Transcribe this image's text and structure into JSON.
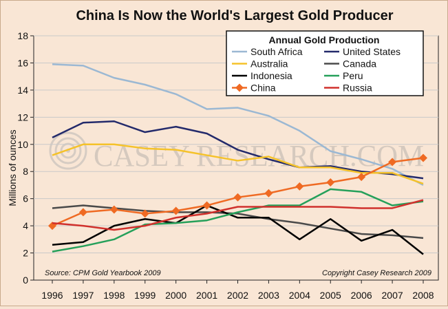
{
  "chart_data": {
    "type": "line",
    "title": "China Is Now the World's Largest Gold Producer",
    "ylabel": "Millions of ounces",
    "xlabel": "",
    "ylim": [
      0,
      18
    ],
    "yticks": [
      0,
      2,
      4,
      6,
      8,
      10,
      12,
      14,
      16,
      18
    ],
    "categories": [
      "1996",
      "1997",
      "1998",
      "1999",
      "2000",
      "2001",
      "2002",
      "2003",
      "2004",
      "2005",
      "2006",
      "2007",
      "2008"
    ],
    "legend_title": "Annual Gold Production",
    "legend_position": "top-right",
    "grid": true,
    "source": "Source: CPM Gold Yearbook 2009",
    "copyright": "Copyright Casey Research 2009",
    "watermark": "CASEY RESEARCH.COM",
    "series": [
      {
        "name": "South Africa",
        "color": "#9bb8d3",
        "marker": "none",
        "values": [
          15.9,
          15.8,
          14.9,
          14.4,
          13.7,
          12.6,
          12.7,
          12.1,
          11.0,
          9.5,
          8.9,
          8.2,
          7.0
        ]
      },
      {
        "name": "United States",
        "color": "#232a6b",
        "marker": "none",
        "values": [
          10.5,
          11.6,
          11.7,
          10.9,
          11.3,
          10.8,
          9.6,
          8.9,
          8.3,
          8.4,
          8.0,
          7.8,
          7.5
        ]
      },
      {
        "name": "Australia",
        "color": "#f5c22a",
        "marker": "none",
        "values": [
          9.2,
          10.0,
          10.0,
          9.7,
          9.6,
          9.2,
          8.8,
          9.1,
          8.3,
          8.3,
          7.9,
          7.9,
          7.1
        ]
      },
      {
        "name": "Canada",
        "color": "#4a4a4a",
        "marker": "none",
        "values": [
          5.3,
          5.5,
          5.3,
          5.1,
          5.0,
          5.0,
          4.9,
          4.5,
          4.2,
          3.8,
          3.4,
          3.3,
          3.1
        ]
      },
      {
        "name": "Indonesia",
        "color": "#000000",
        "marker": "none",
        "values": [
          2.6,
          2.8,
          4.0,
          4.5,
          4.2,
          5.5,
          4.6,
          4.6,
          3.0,
          4.5,
          2.9,
          3.7,
          1.9
        ]
      },
      {
        "name": "Peru",
        "color": "#25a05a",
        "marker": "none",
        "values": [
          2.1,
          2.5,
          3.0,
          4.1,
          4.2,
          4.4,
          5.0,
          5.5,
          5.5,
          6.7,
          6.5,
          5.5,
          5.8
        ]
      },
      {
        "name": "China",
        "color": "#ef6a23",
        "marker": "diamond",
        "values": [
          4.0,
          5.0,
          5.2,
          4.9,
          5.1,
          5.5,
          6.1,
          6.4,
          6.9,
          7.2,
          7.6,
          8.7,
          9.0
        ]
      },
      {
        "name": "Russia",
        "color": "#d0302c",
        "marker": "none",
        "values": [
          4.2,
          4.0,
          3.7,
          4.0,
          4.6,
          4.9,
          5.4,
          5.4,
          5.4,
          5.4,
          5.3,
          5.3,
          5.9
        ]
      }
    ]
  }
}
